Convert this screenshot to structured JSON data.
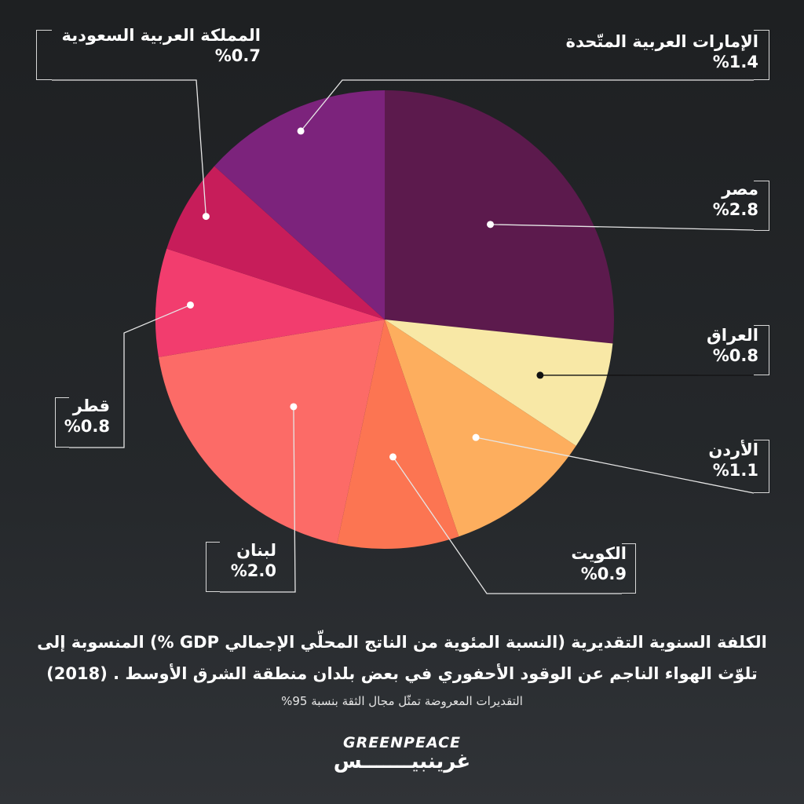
{
  "chart_data": {
    "type": "pie",
    "slices": [
      {
        "label": "مصر",
        "value_label": "%2.8",
        "value": 2.8,
        "color": "#5c1a4d"
      },
      {
        "label": "العراق",
        "value_label": "%0.8",
        "value": 0.8,
        "color": "#f8e8a6"
      },
      {
        "label": "الأردن",
        "value_label": "%1.1",
        "value": 1.1,
        "color": "#fdae5e"
      },
      {
        "label": "الكويت",
        "value_label": "%0.9",
        "value": 0.9,
        "color": "#fc7552"
      },
      {
        "label": "لبنان",
        "value_label": "%2.0",
        "value": 2.0,
        "color": "#fc6b67"
      },
      {
        "label": "قطر",
        "value_label": "%0.8",
        "value": 0.8,
        "color": "#f23d6e"
      },
      {
        "label": "المملكة العربية السعودية",
        "value_label": "%0.7",
        "value": 0.7,
        "color": "#c71d5a"
      },
      {
        "label": "الإمارات العربية المتّحدة",
        "value_label": "%1.4",
        "value": 1.4,
        "color": "#7c237c"
      }
    ]
  },
  "caption": {
    "line1": "الكلفة السنوية التقديرية (النسبة المئوية من الناتج المحلّي الإجمالي GDP %) المنسوبة إلى",
    "line2": "تلوّث الهواء الناجم عن الوقود الأحفوري في بعض بلدان منطقة الشرق الأوسط . (2018)",
    "note": "التقديرات المعروضة تمثّل مجال الثقة بنسبة 95%"
  },
  "logo": {
    "latin": "GREENPEACE",
    "arabic": "غرينبيـــــــس"
  }
}
